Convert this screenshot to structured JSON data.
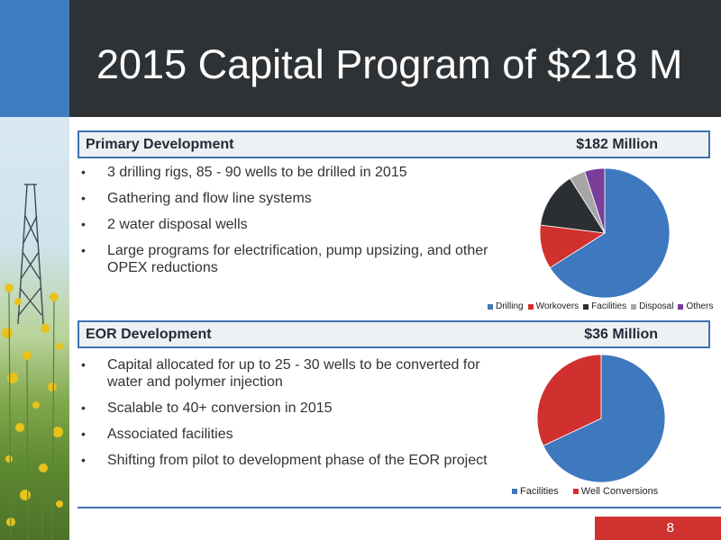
{
  "slide": {
    "title": "2015 Capital Program of $218 M",
    "page_number": "8"
  },
  "colors": {
    "header_bg": "#2f3235",
    "header_accent": "#3d7dbf",
    "section_border": "#3d72ae",
    "page_box": "#d0332f",
    "blue": "#3e78be",
    "red": "#d0302e",
    "dark": "#2b2f33",
    "gray": "#a6a6a6",
    "purple": "#7a3d9a"
  },
  "primary": {
    "title": "Primary Development",
    "amount": "$182 Million",
    "bullets": [
      "3 drilling rigs, 85 - 90 wells to be drilled in 2015",
      "Gathering and flow line systems",
      "2 water disposal wells",
      "Large programs for electrification, pump upsizing, and other OPEX reductions"
    ]
  },
  "eor": {
    "title": "EOR Development",
    "amount": "$36 Million",
    "bullets": [
      "Capital allocated for up to 25 - 30 wells to be converted for water and polymer injection",
      "Scalable to 40+ conversion in 2015",
      "Associated facilities",
      "Shifting from pilot to development phase of the EOR project"
    ]
  },
  "chart_data": [
    {
      "type": "pie",
      "title": "",
      "categories": [
        "Drilling",
        "Workovers",
        "Facilities",
        "Disposal",
        "Others"
      ],
      "values": [
        66,
        11,
        14,
        4,
        5
      ],
      "colors": [
        "#3e78be",
        "#d0302e",
        "#2b2f33",
        "#a6a6a6",
        "#7a3d9a"
      ],
      "legend": "bottom"
    },
    {
      "type": "pie",
      "title": "",
      "categories": [
        "Facilities",
        "Well Conversions"
      ],
      "values": [
        68,
        32
      ],
      "colors": [
        "#3e78be",
        "#d0302e"
      ],
      "legend": "bottom"
    }
  ]
}
